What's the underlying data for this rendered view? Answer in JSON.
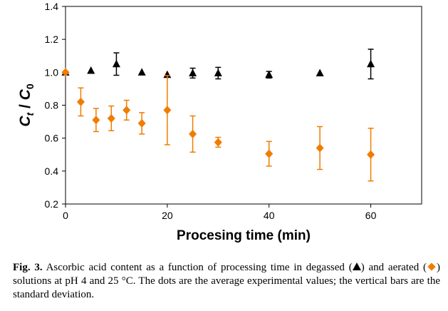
{
  "chart_data": {
    "type": "scatter",
    "xlabel": "Procesing time (min)",
    "ylabel_main": "C",
    "ylabel_sub_num": "t",
    "ylabel_sep": " / ",
    "ylabel_sub_den": "0",
    "xlim": [
      0,
      70
    ],
    "ylim": [
      0.2,
      1.4
    ],
    "xticks": [
      0,
      20,
      40,
      60
    ],
    "yticks": [
      0.2,
      0.4,
      0.6,
      0.8,
      1.0,
      1.2,
      1.4
    ],
    "ytick_labels": [
      "0.2",
      "0.4",
      "0.6",
      "0.8",
      "1.0",
      "1.2",
      "1.4"
    ],
    "grid": false,
    "legend": "none",
    "series": [
      {
        "marker": "triangle",
        "color": "#000000",
        "x": [
          0,
          5,
          10,
          15,
          20,
          25,
          30,
          40,
          50,
          60
        ],
        "y": [
          1.0,
          1.01,
          1.05,
          1.0,
          0.985,
          0.995,
          0.995,
          0.985,
          0.995,
          1.05
        ],
        "err": [
          0,
          0,
          0.068,
          0,
          0,
          0.03,
          0.035,
          0.02,
          0.0,
          0.09
        ]
      },
      {
        "marker": "diamond",
        "color": "#f07c00",
        "x": [
          0,
          3,
          6,
          9,
          12,
          15,
          20,
          25,
          30,
          40,
          50,
          60
        ],
        "y": [
          1.0,
          0.82,
          0.71,
          0.72,
          0.77,
          0.69,
          0.77,
          0.625,
          0.575,
          0.505,
          0.54,
          0.5
        ],
        "err": [
          0,
          0.085,
          0.07,
          0.075,
          0.06,
          0.065,
          0.21,
          0.11,
          0.03,
          0.075,
          0.13,
          0.16
        ]
      }
    ]
  },
  "caption": {
    "label": "Fig. 3.",
    "text_1": " Ascorbic acid content as a function of processing time in degassed (",
    "text_2": ") and aerated (",
    "text_3": ") solutions at pH 4 and 25 °C. The dots are the average experimental values; the vertical bars are the standard deviation."
  }
}
